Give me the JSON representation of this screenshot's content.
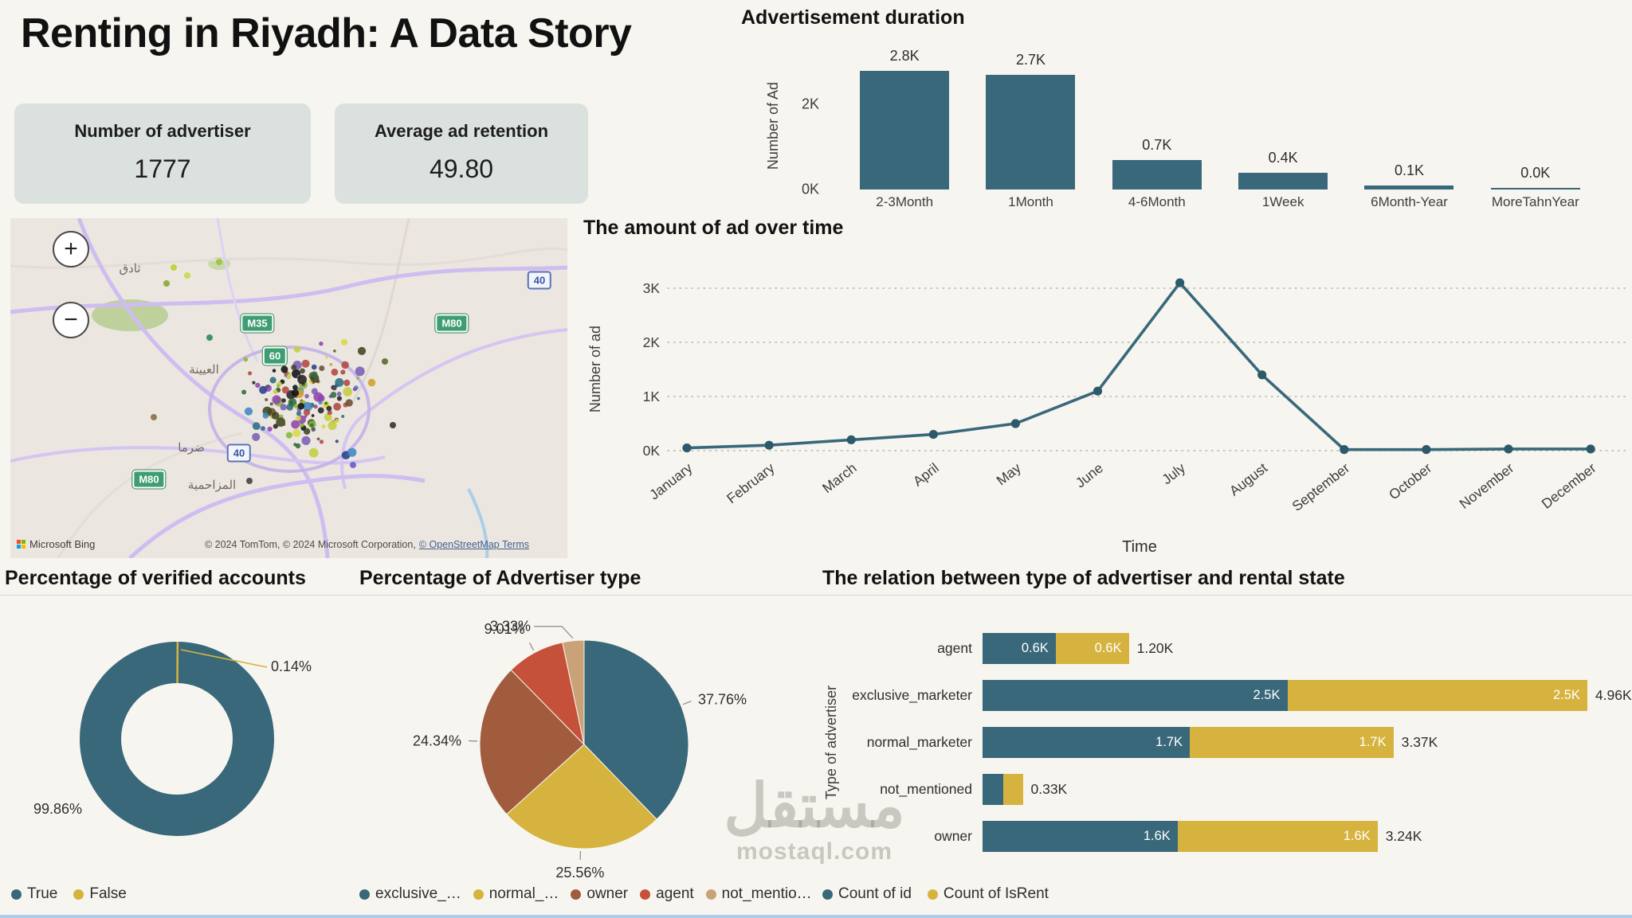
{
  "page": {
    "title": "Renting in Riyadh: A Data Story",
    "watermark": {
      "arabic": "مستقل",
      "latin": "mostaql.com"
    }
  },
  "kpis": [
    {
      "label": "Number of advertiser",
      "value": "1777"
    },
    {
      "label": "Average ad retention",
      "value": "49.80"
    }
  ],
  "map": {
    "zoom_in_label": "+",
    "zoom_out_label": "−",
    "provider": "Microsoft Bing",
    "attribution": "© 2024 TomTom, © 2024 Microsoft Corporation,",
    "attribution_link": "© OpenStreetMap Terms",
    "place_labels": [
      "ثادق",
      "العيينة",
      "ضرما",
      "المزاحمية"
    ],
    "road_shields": [
      {
        "text": "40",
        "style": "blue"
      },
      {
        "text": "M35",
        "style": "green"
      },
      {
        "text": "M80",
        "style": "green"
      },
      {
        "text": "60",
        "style": "green"
      },
      {
        "text": "40",
        "style": "blue"
      },
      {
        "text": "M80",
        "style": "green"
      }
    ]
  },
  "chart_data": [
    {
      "id": "ad_duration",
      "type": "bar",
      "title": "Advertisement duration",
      "ylabel": "Number of Ad",
      "categories": [
        "2-3Month",
        "1Month",
        "4-6Month",
        "1Week",
        "6Month-Year",
        "MoreTahnYear"
      ],
      "values": [
        2.8,
        2.7,
        0.7,
        0.4,
        0.1,
        0.0
      ],
      "value_labels": [
        "2.8K",
        "2.7K",
        "0.7K",
        "0.4K",
        "0.1K",
        "0.0K"
      ],
      "yticks": [
        "0K",
        "2K"
      ],
      "ytick_values": [
        0,
        2
      ],
      "ylim": [
        0,
        3.0
      ],
      "bar_color": "#38687a"
    },
    {
      "id": "ad_over_time",
      "type": "line",
      "title": "The amount of ad over time",
      "xlabel": "Time",
      "ylabel": "Number of ad",
      "categories": [
        "January",
        "February",
        "March",
        "April",
        "May",
        "June",
        "July",
        "August",
        "September",
        "October",
        "November",
        "December"
      ],
      "values": [
        0.05,
        0.1,
        0.2,
        0.3,
        0.5,
        1.1,
        3.1,
        1.4,
        0.02,
        0.02,
        0.03,
        0.03
      ],
      "yticks": [
        "0K",
        "1K",
        "2K",
        "3K"
      ],
      "ytick_values": [
        0,
        1,
        2,
        3
      ],
      "ylim": [
        0,
        3.4
      ],
      "grid": "dotted",
      "line_color": "#38687a",
      "point_color": "#2d5a6b"
    },
    {
      "id": "verified_accounts",
      "type": "pie",
      "subtype": "donut",
      "title": "Percentage of verified accounts",
      "labels": [
        "True",
        "False"
      ],
      "values": [
        99.86,
        0.14
      ],
      "value_labels": [
        "99.86%",
        "0.14%"
      ],
      "colors": [
        "#38687a",
        "#d6b33e"
      ],
      "legend_position": "bottom"
    },
    {
      "id": "advertiser_type",
      "type": "pie",
      "title": "Percentage of Advertiser type",
      "labels": [
        "exclusive_…",
        "normal_…",
        "owner",
        "agent",
        "not_mentio…"
      ],
      "values": [
        37.76,
        25.56,
        24.34,
        9.01,
        3.33
      ],
      "value_labels": [
        "37.76%",
        "25.56%",
        "24.34%",
        "9.01%",
        "3.33%"
      ],
      "colors": [
        "#38687a",
        "#d6b33e",
        "#a15c3e",
        "#c6513a",
        "#c9a278"
      ],
      "legend_position": "bottom"
    },
    {
      "id": "advertiser_rental_state",
      "type": "bar",
      "subtype": "stacked-horizontal",
      "title": "The relation between type of advertiser and rental state",
      "ylabel": "Type of advertiser",
      "categories": [
        "agent",
        "exclusive_marketer",
        "normal_marketer",
        "not_mentioned",
        "owner"
      ],
      "series": [
        {
          "name": "Count of id",
          "color": "#38687a",
          "values": [
            0.6,
            2.5,
            1.7,
            0.17,
            1.6
          ],
          "labels": [
            "0.6K",
            "2.5K",
            "1.7K",
            "",
            "1.6K"
          ]
        },
        {
          "name": "Count of IsRent",
          "color": "#d6b33e",
          "values": [
            0.6,
            2.46,
            1.67,
            0.16,
            1.64
          ],
          "labels": [
            "0.6K",
            "2.5K",
            "1.7K",
            "",
            "1.6K"
          ]
        }
      ],
      "totals": [
        "1.20K",
        "4.96K",
        "3.37K",
        "0.33K",
        "3.24K"
      ],
      "xlim": [
        0,
        5.2
      ],
      "legend_position": "bottom"
    }
  ]
}
